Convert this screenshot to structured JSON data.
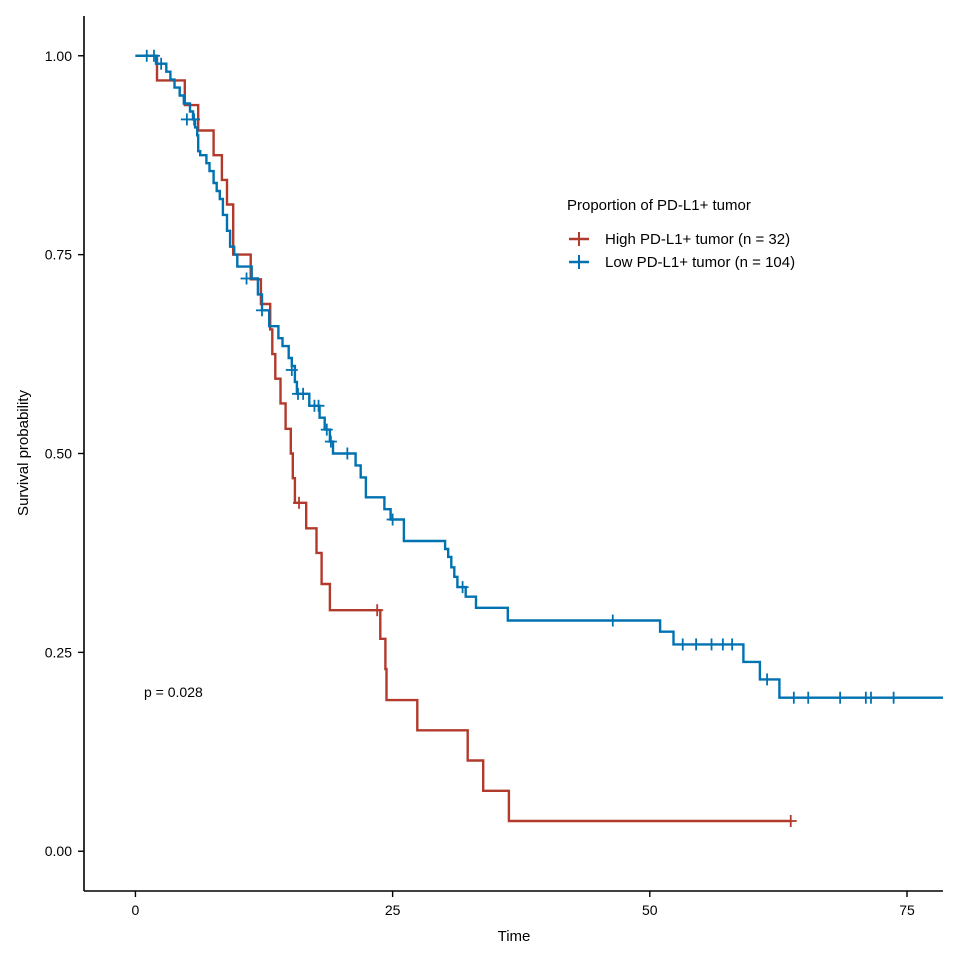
{
  "chart_data": {
    "type": "line",
    "subtype": "kaplan-meier",
    "title": "",
    "xlabel": "Time",
    "ylabel": "Survival probability",
    "xlim": [
      -5,
      78.5
    ],
    "ylim": [
      -0.05,
      1.05
    ],
    "xticks": [
      0,
      25,
      50,
      75
    ],
    "xtick_labels": [
      "0",
      "25",
      "50",
      "75"
    ],
    "yticks": [
      0,
      0.25,
      0.5,
      0.75,
      1
    ],
    "ytick_labels": [
      "0.00",
      "0.25",
      "0.50",
      "0.75",
      "1.00"
    ],
    "grid": false,
    "legend": {
      "title": "Proportion of PD-L1+ tumor",
      "position": "right"
    },
    "annotation": "p = 0.028",
    "series": [
      {
        "name": "High PD-L1+ tumor (n = 32)",
        "color": "#B23A2C",
        "steps": [
          [
            0,
            1.0
          ],
          [
            2.1,
            0.969
          ],
          [
            4.8,
            0.938
          ],
          [
            6.1,
            0.906
          ],
          [
            7.6,
            0.875
          ],
          [
            8.4,
            0.844
          ],
          [
            8.9,
            0.813
          ],
          [
            9.5,
            0.75
          ],
          [
            11.2,
            0.719
          ],
          [
            12.2,
            0.688
          ],
          [
            13.1,
            0.656
          ],
          [
            13.3,
            0.625
          ],
          [
            13.6,
            0.594
          ],
          [
            14.1,
            0.563
          ],
          [
            14.6,
            0.531
          ],
          [
            15.1,
            0.5
          ],
          [
            15.3,
            0.469
          ],
          [
            15.5,
            0.438
          ],
          [
            16.6,
            0.406
          ],
          [
            17.6,
            0.375
          ],
          [
            18.1,
            0.336
          ],
          [
            18.9,
            0.303
          ],
          [
            23.8,
            0.267
          ],
          [
            24.3,
            0.229
          ],
          [
            24.4,
            0.19
          ],
          [
            27.4,
            0.152
          ],
          [
            32.3,
            0.114
          ],
          [
            33.8,
            0.076
          ],
          [
            36.3,
            0.038
          ],
          [
            63.7,
            0.038
          ]
        ],
        "censored": [
          [
            15.9,
            0.438
          ],
          [
            23.5,
            0.303
          ],
          [
            63.7,
            0.038
          ]
        ]
      },
      {
        "name": "Low PD-L1+ tumor (n = 104)",
        "color": "#0072B2",
        "steps": [
          [
            0,
            1.0
          ],
          [
            1.5,
            1.0
          ],
          [
            2.0,
            0.99
          ],
          [
            3.0,
            0.98
          ],
          [
            3.4,
            0.97
          ],
          [
            3.8,
            0.96
          ],
          [
            4.3,
            0.95
          ],
          [
            4.7,
            0.94
          ],
          [
            5.3,
            0.93
          ],
          [
            5.6,
            0.92
          ],
          [
            5.8,
            0.91
          ],
          [
            6.0,
            0.9
          ],
          [
            6.1,
            0.88
          ],
          [
            6.3,
            0.875
          ],
          [
            6.9,
            0.865
          ],
          [
            7.2,
            0.855
          ],
          [
            7.6,
            0.84
          ],
          [
            7.9,
            0.83
          ],
          [
            8.2,
            0.82
          ],
          [
            8.5,
            0.8
          ],
          [
            8.9,
            0.78
          ],
          [
            9.2,
            0.76
          ],
          [
            9.6,
            0.75
          ],
          [
            9.9,
            0.735
          ],
          [
            11.3,
            0.72
          ],
          [
            11.9,
            0.7
          ],
          [
            12.3,
            0.68
          ],
          [
            13.0,
            0.66
          ],
          [
            13.9,
            0.645
          ],
          [
            14.3,
            0.635
          ],
          [
            14.9,
            0.62
          ],
          [
            15.2,
            0.61
          ],
          [
            15.5,
            0.59
          ],
          [
            15.7,
            0.575
          ],
          [
            16.9,
            0.56
          ],
          [
            17.9,
            0.545
          ],
          [
            18.4,
            0.53
          ],
          [
            18.9,
            0.515
          ],
          [
            19.2,
            0.5
          ],
          [
            21.4,
            0.485
          ],
          [
            21.9,
            0.47
          ],
          [
            22.4,
            0.445
          ],
          [
            24.2,
            0.43
          ],
          [
            24.8,
            0.417
          ],
          [
            26.1,
            0.39
          ],
          [
            30.1,
            0.38
          ],
          [
            30.4,
            0.37
          ],
          [
            30.7,
            0.357
          ],
          [
            31.0,
            0.345
          ],
          [
            31.3,
            0.332
          ],
          [
            32.1,
            0.32
          ],
          [
            33.1,
            0.306
          ],
          [
            36.2,
            0.29
          ],
          [
            51.0,
            0.276
          ],
          [
            52.3,
            0.26
          ],
          [
            59.1,
            0.238
          ],
          [
            60.7,
            0.216
          ],
          [
            62.6,
            0.193
          ],
          [
            78.5,
            0.193
          ]
        ],
        "censored": [
          [
            1.1,
            1.0
          ],
          [
            1.8,
            1.0
          ],
          [
            2.5,
            0.99
          ],
          [
            5.0,
            0.92
          ],
          [
            5.7,
            0.92
          ],
          [
            10.8,
            0.72
          ],
          [
            12.3,
            0.68
          ],
          [
            15.2,
            0.605
          ],
          [
            15.8,
            0.575
          ],
          [
            16.3,
            0.575
          ],
          [
            17.4,
            0.56
          ],
          [
            17.8,
            0.56
          ],
          [
            18.6,
            0.53
          ],
          [
            19.0,
            0.515
          ],
          [
            20.6,
            0.5
          ],
          [
            25.0,
            0.417
          ],
          [
            31.8,
            0.332
          ],
          [
            46.4,
            0.29
          ],
          [
            53.2,
            0.26
          ],
          [
            54.5,
            0.26
          ],
          [
            56.0,
            0.26
          ],
          [
            57.1,
            0.26
          ],
          [
            58.0,
            0.26
          ],
          [
            61.4,
            0.216
          ],
          [
            64.0,
            0.193
          ],
          [
            65.4,
            0.193
          ],
          [
            68.5,
            0.193
          ],
          [
            71.0,
            0.193
          ],
          [
            71.5,
            0.193
          ],
          [
            73.7,
            0.193
          ]
        ]
      }
    ]
  }
}
